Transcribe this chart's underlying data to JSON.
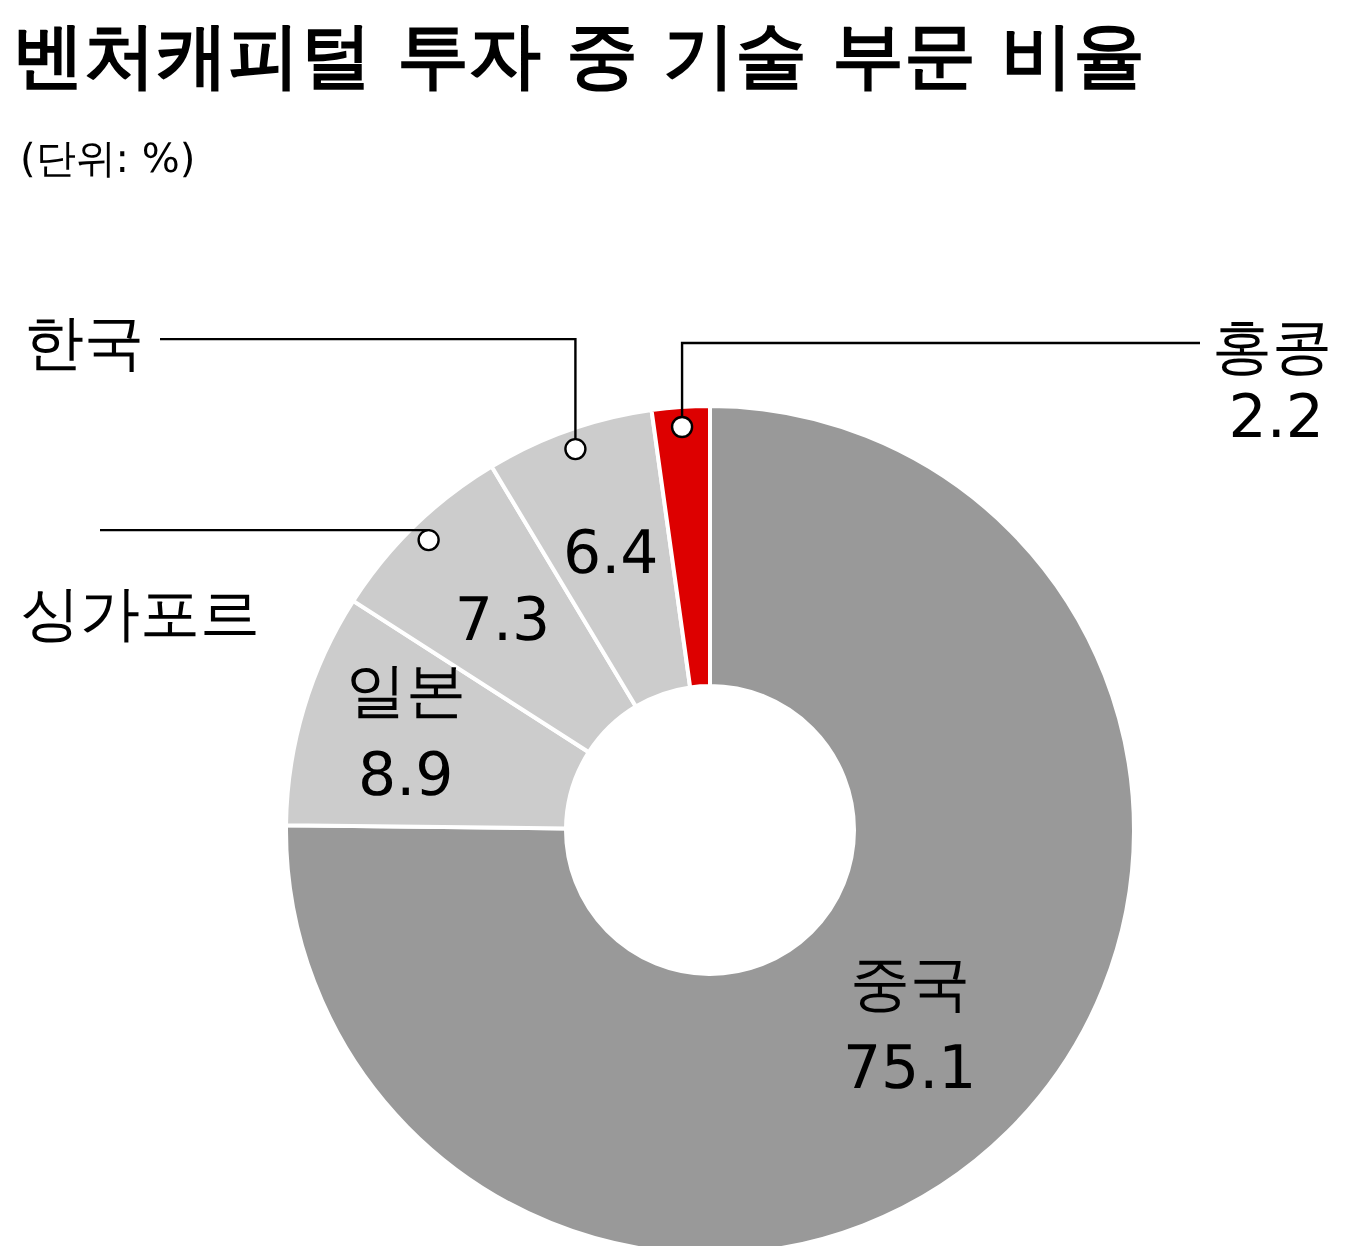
{
  "chart_data": {
    "type": "donut",
    "title": "벤처캐피털 투자 중 기술 부문 비율",
    "subtitle": "(단위: %)",
    "categories": [
      "중국",
      "일본",
      "싱가포르",
      "한국",
      "홍콩"
    ],
    "values": [
      75.1,
      8.9,
      7.3,
      6.4,
      2.2
    ],
    "colors": [
      "#999999",
      "#cccccc",
      "#cccccc",
      "#cccccc",
      "#dd0000"
    ],
    "data_labels": true,
    "legend": false
  }
}
